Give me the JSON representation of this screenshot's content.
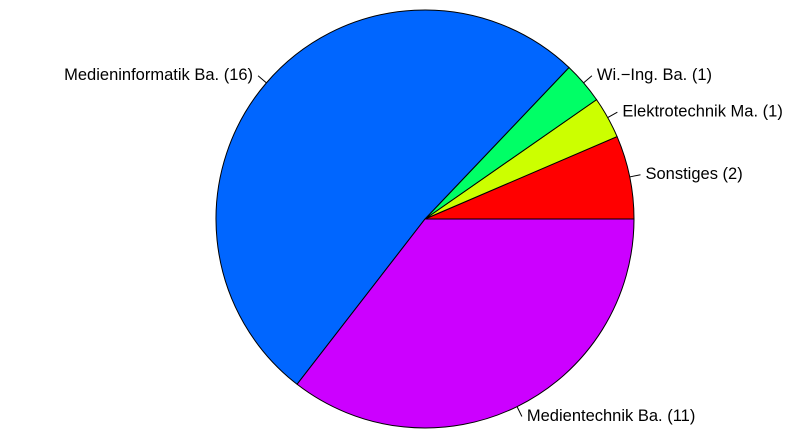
{
  "chart_data": {
    "type": "pie",
    "title": "",
    "start": "right",
    "direction": "counterclockwise",
    "slices": [
      {
        "label": "Sonstiges (2)",
        "value": 2,
        "color": "#FF0000"
      },
      {
        "label": "Elektrotechnik Ma. (1)",
        "value": 1,
        "color": "#CCFF00"
      },
      {
        "label": "Wi.−Ing. Ba. (1)",
        "value": 1,
        "color": "#00FF66"
      },
      {
        "label": "Medieninformatik Ba. (16)",
        "value": 16,
        "color": "#0066FF"
      },
      {
        "label": "Medientechnik Ba. (11)",
        "value": 11,
        "color": "#CC00FF"
      }
    ]
  }
}
